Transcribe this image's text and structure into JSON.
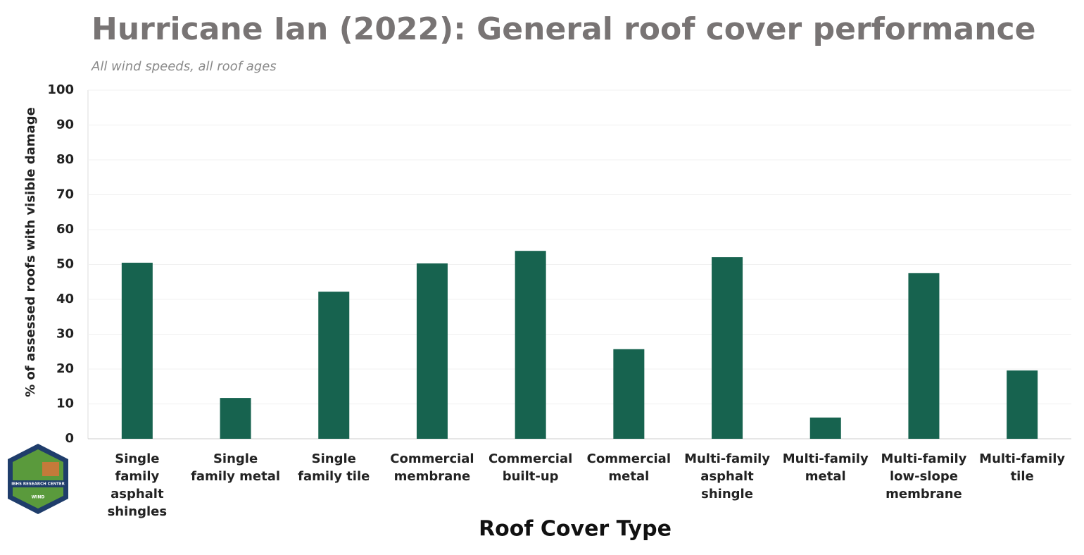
{
  "chart_data": {
    "type": "bar",
    "title": "Hurricane Ian (2022): General roof cover performance",
    "subtitle": "All wind speeds, all roof ages",
    "x_label": "Roof Cover Type",
    "y_label": "% of assessed roofs with visible damage",
    "categories": [
      "Single family asphalt shingles",
      "Single family metal",
      "Single family tile",
      "Commercial membrane",
      "Commercial built-up",
      "Commercial metal",
      "Multi-family asphalt shingle",
      "Multi-family metal",
      "Multi-family low-slope membrane",
      "Multi-family tile"
    ],
    "values": [
      50.5,
      11.7,
      42.2,
      50.3,
      53.9,
      25.7,
      52.1,
      6.1,
      47.5,
      19.6
    ],
    "color": "#17634f",
    "ylim": [
      0,
      100
    ],
    "yticks": [
      0,
      10,
      20,
      30,
      40,
      50,
      60,
      70,
      80,
      90,
      100
    ],
    "grid": true,
    "logo": {
      "org": "IBHS RESEARCH CENTER",
      "label": "WIND"
    }
  }
}
